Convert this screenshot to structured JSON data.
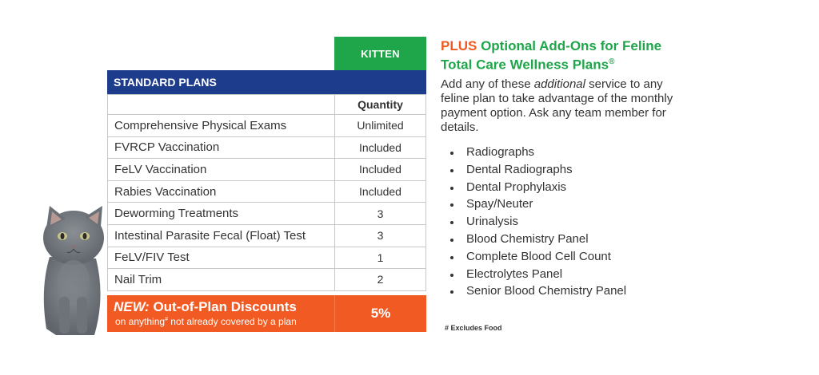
{
  "plan_column": "KITTEN",
  "section_header": "STANDARD PLANS",
  "quantity_header": "Quantity",
  "rows": [
    {
      "service": "Comprehensive Physical Exams",
      "qty": "Unlimited"
    },
    {
      "service": "FVRCP Vaccination",
      "qty": "Included"
    },
    {
      "service": "FeLV Vaccination",
      "qty": "Included"
    },
    {
      "service": "Rabies Vaccination",
      "qty": "Included"
    },
    {
      "service": "Deworming Treatments",
      "qty": "3"
    },
    {
      "service": "Intestinal Parasite Fecal (Float) Test",
      "qty": "3"
    },
    {
      "service": "FeLV/FIV Test",
      "qty": "1"
    },
    {
      "service": "Nail Trim",
      "qty": "2"
    }
  ],
  "discount": {
    "new_label": "NEW:",
    "title": "Out-of-Plan Discounts",
    "subtitle_pre": "on anything",
    "subtitle_mark": "#",
    "subtitle_post": " not already covered by a plan",
    "value": "5%"
  },
  "addons": {
    "title_plus": "PLUS",
    "title_rest": "Optional Add-Ons for Feline Total Care Wellness Plans",
    "title_mark": "®",
    "desc_pre": "Add any of these ",
    "desc_em": "additional",
    "desc_post": " service to any feline plan to take advantage of the monthly payment option. Ask any team member for details.",
    "items": [
      "Radiographs",
      "Dental Radiographs",
      "Dental Prophylaxis",
      "Spay/Neuter",
      "Urinalysis",
      "Blood Chemistry Panel",
      "Complete Blood Cell Count",
      "Electrolytes Panel",
      "Senior Blood Chemistry Panel"
    ]
  },
  "footnote": "# Excludes Food",
  "colors": {
    "green": "#1fa64a",
    "navy": "#1e3c8c",
    "orange": "#f15a22"
  }
}
